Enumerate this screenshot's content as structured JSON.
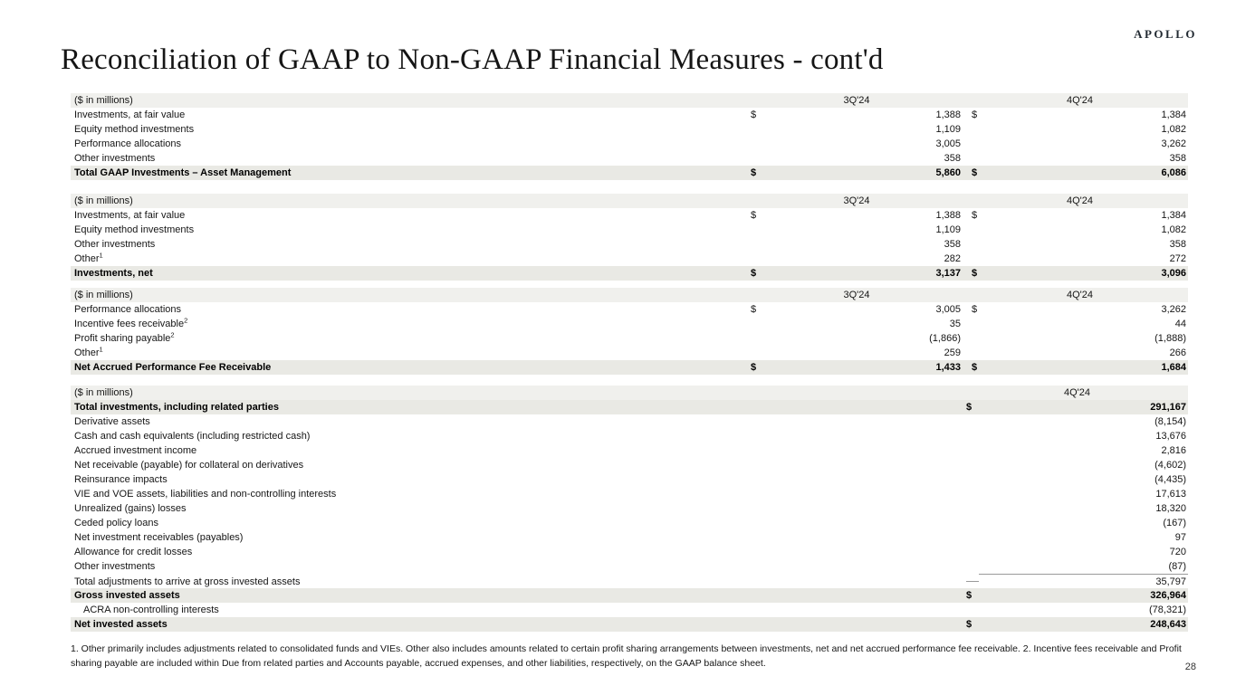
{
  "logo": "APOLLO",
  "title": "Reconciliation of GAAP to Non-GAAP Financial Measures - cont'd",
  "page_number": "28",
  "footnote": "1. Other primarily includes adjustments related to consolidated funds and VIEs. Other also includes amounts related to certain profit sharing arrangements between investments, net and net accrued performance fee receivable. 2. Incentive fees receivable and Profit sharing payable are included within Due from related parties and Accounts payable, accrued expenses, and other liabilities, respectively, on the GAAP balance sheet.",
  "tables": [
    {
      "unit_label": "($ in millions)",
      "columns": [
        "3Q'24",
        "4Q'24"
      ],
      "rows": [
        {
          "label": "Investments, at fair value",
          "dollar": true,
          "values": [
            "1,388",
            "1,384"
          ]
        },
        {
          "label": "Equity method investments",
          "values": [
            "1,109",
            "1,082"
          ]
        },
        {
          "label": "Performance allocations",
          "values": [
            "3,005",
            "3,262"
          ]
        },
        {
          "label": "Other investments",
          "values": [
            "358",
            "358"
          ]
        },
        {
          "label": "Total GAAP Investments – Asset Management",
          "dollar": true,
          "total": true,
          "values": [
            "5,860",
            "6,086"
          ]
        }
      ]
    },
    {
      "unit_label": "($ in millions)",
      "columns": [
        "3Q'24",
        "4Q'24"
      ],
      "rows": [
        {
          "label": "Investments, at fair value",
          "dollar": true,
          "values": [
            "1,388",
            "1,384"
          ]
        },
        {
          "label": "Equity method investments",
          "values": [
            "1,109",
            "1,082"
          ]
        },
        {
          "label": "Other investments",
          "values": [
            "358",
            "358"
          ]
        },
        {
          "label": "Other",
          "sup": "1",
          "values": [
            "282",
            "272"
          ]
        },
        {
          "label": "Investments, net",
          "dollar": true,
          "total": true,
          "values": [
            "3,137",
            "3,096"
          ]
        }
      ]
    },
    {
      "unit_label": "($ in millions)",
      "columns": [
        "3Q'24",
        "4Q'24"
      ],
      "rows": [
        {
          "label": "Performance allocations",
          "dollar": true,
          "values": [
            "3,005",
            "3,262"
          ]
        },
        {
          "label": "Incentive fees receivable",
          "sup": "2",
          "values": [
            "35",
            "44"
          ]
        },
        {
          "label": "Profit sharing payable",
          "sup": "2",
          "values": [
            "(1,866)",
            "(1,888)"
          ]
        },
        {
          "label": "Other",
          "sup": "1",
          "values": [
            "259",
            "266"
          ]
        },
        {
          "label": "Net Accrued Performance Fee Receivable",
          "dollar": true,
          "total": true,
          "values": [
            "1,433",
            "1,684"
          ]
        }
      ]
    },
    {
      "unit_label": "($ in millions)",
      "columns": [
        "4Q'24"
      ],
      "rows": [
        {
          "label": "Total investments, including related parties",
          "dollar": true,
          "total": true,
          "values": [
            "291,167"
          ]
        },
        {
          "label": "Derivative assets",
          "values": [
            "(8,154)"
          ]
        },
        {
          "label": "Cash and cash equivalents (including restricted cash)",
          "values": [
            "13,676"
          ]
        },
        {
          "label": "Accrued investment income",
          "values": [
            "2,816"
          ]
        },
        {
          "label": "Net receivable (payable) for collateral on derivatives",
          "values": [
            "(4,602)"
          ]
        },
        {
          "label": "Reinsurance impacts",
          "values": [
            "(4,435)"
          ]
        },
        {
          "label": "VIE and VOE assets, liabilities and non-controlling interests",
          "values": [
            "17,613"
          ]
        },
        {
          "label": "Unrealized (gains) losses",
          "values": [
            "18,320"
          ]
        },
        {
          "label": "Ceded policy loans",
          "values": [
            "(167)"
          ]
        },
        {
          "label": "Net investment receivables (payables)",
          "values": [
            "97"
          ]
        },
        {
          "label": "Allowance for credit losses",
          "values": [
            "720"
          ]
        },
        {
          "label": "Other investments",
          "values": [
            "(87)"
          ]
        },
        {
          "label": "Total adjustments to arrive at gross invested assets",
          "topline": true,
          "values": [
            "35,797"
          ]
        },
        {
          "label": "Gross invested assets",
          "dollar": true,
          "total": true,
          "values": [
            "326,964"
          ]
        },
        {
          "label": "ACRA non-controlling interests",
          "indent": true,
          "values": [
            "(78,321)"
          ]
        },
        {
          "label": "Net invested assets",
          "dollar": true,
          "total": true,
          "values": [
            "248,643"
          ]
        }
      ]
    }
  ]
}
